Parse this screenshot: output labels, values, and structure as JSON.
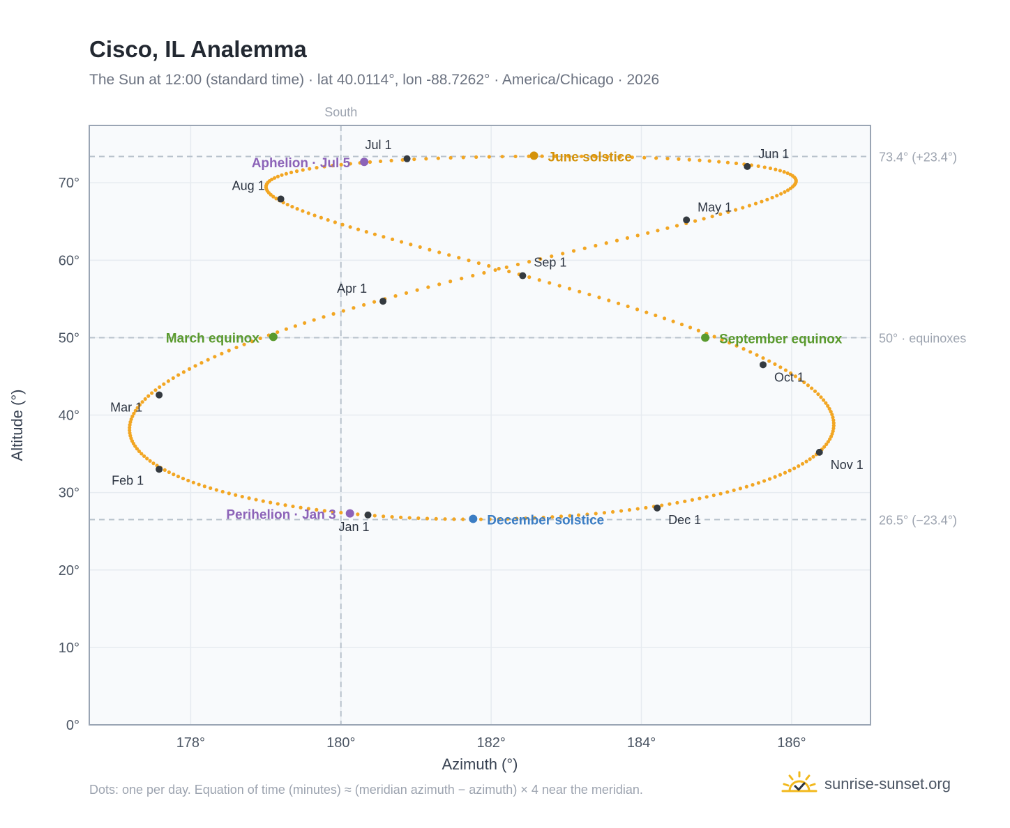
{
  "header": {
    "title": "Cisco, IL Analemma",
    "subtitle": "The Sun at 12:00 (standard time) · lat 40.0114°, lon -88.7262° · America/Chicago · 2026"
  },
  "footer": {
    "note": "Dots: one per day. Equation of time (minutes) ≈ (meridian azimuth − azimuth) × 4 near the meridian.",
    "brand": "sunrise-sunset.org",
    "brand_icon": "sun-check-icon"
  },
  "colors": {
    "path": "#f2a623",
    "month": "#343a40",
    "solstice_june": "#d4920a",
    "solstice_december": "#3b7dc4",
    "equinox": "#5a9a2e",
    "apsis": "#8c63b8",
    "grid": "#e6ebf0",
    "reference": "#b8c2cc",
    "plot_bg": "#f8fafc",
    "plot_border": "#9aa5b4"
  },
  "chart_data": {
    "type": "scatter",
    "xlabel": "Azimuth (°)",
    "ylabel": "Altitude (°)",
    "xlim": [
      176.65,
      187.05
    ],
    "ylim": [
      0,
      77.4
    ],
    "xticks": [
      178,
      180,
      182,
      184,
      186
    ],
    "xtick_labels": [
      "178°",
      "180°",
      "182°",
      "184°",
      "186°"
    ],
    "yticks": [
      0,
      10,
      20,
      30,
      40,
      50,
      60,
      70
    ],
    "ytick_labels": [
      "0°",
      "10°",
      "20°",
      "30°",
      "40°",
      "50°",
      "60°",
      "70°"
    ],
    "grid": true,
    "meridian": {
      "x": 180,
      "label": "South"
    },
    "reference_lines": [
      {
        "y": 73.4,
        "label": "73.4° (+23.4°)"
      },
      {
        "y": 50,
        "label": "50° · equinoxes"
      },
      {
        "y": 26.5,
        "label": "26.5° (−23.4°)"
      }
    ],
    "month_markers": [
      {
        "label": "Jan 1",
        "az": 180.36,
        "alt": 27.1
      },
      {
        "label": "Feb 1",
        "az": 177.58,
        "alt": 33.0
      },
      {
        "label": "Mar 1",
        "az": 177.58,
        "alt": 42.6
      },
      {
        "label": "Apr 1",
        "az": 180.56,
        "alt": 54.7
      },
      {
        "label": "May 1",
        "az": 184.6,
        "alt": 65.2
      },
      {
        "label": "Jun 1",
        "az": 185.41,
        "alt": 72.1
      },
      {
        "label": "Jul 1",
        "az": 180.88,
        "alt": 73.1
      },
      {
        "label": "Aug 1",
        "az": 179.2,
        "alt": 67.9
      },
      {
        "label": "Sep 1",
        "az": 182.42,
        "alt": 58.0
      },
      {
        "label": "Oct 1",
        "az": 185.62,
        "alt": 46.5
      },
      {
        "label": "Nov 1",
        "az": 186.37,
        "alt": 35.2
      },
      {
        "label": "Dec 1",
        "az": 184.21,
        "alt": 28.0
      }
    ],
    "events": [
      {
        "label": "June solstice",
        "az": 182.57,
        "alt": 73.5,
        "kind": "solstice_june"
      },
      {
        "label": "December solstice",
        "az": 181.76,
        "alt": 26.6,
        "kind": "solstice_december"
      },
      {
        "label": "March equinox",
        "az": 179.1,
        "alt": 50.1,
        "kind": "equinox"
      },
      {
        "label": "September equinox",
        "az": 184.85,
        "alt": 50.0,
        "kind": "equinox"
      },
      {
        "label": "Aphelion · Jul 5",
        "az": 180.31,
        "alt": 72.7,
        "kind": "apsis"
      },
      {
        "label": "Perihelion · Jan 3",
        "az": 180.12,
        "alt": 27.3,
        "kind": "apsis"
      }
    ]
  }
}
